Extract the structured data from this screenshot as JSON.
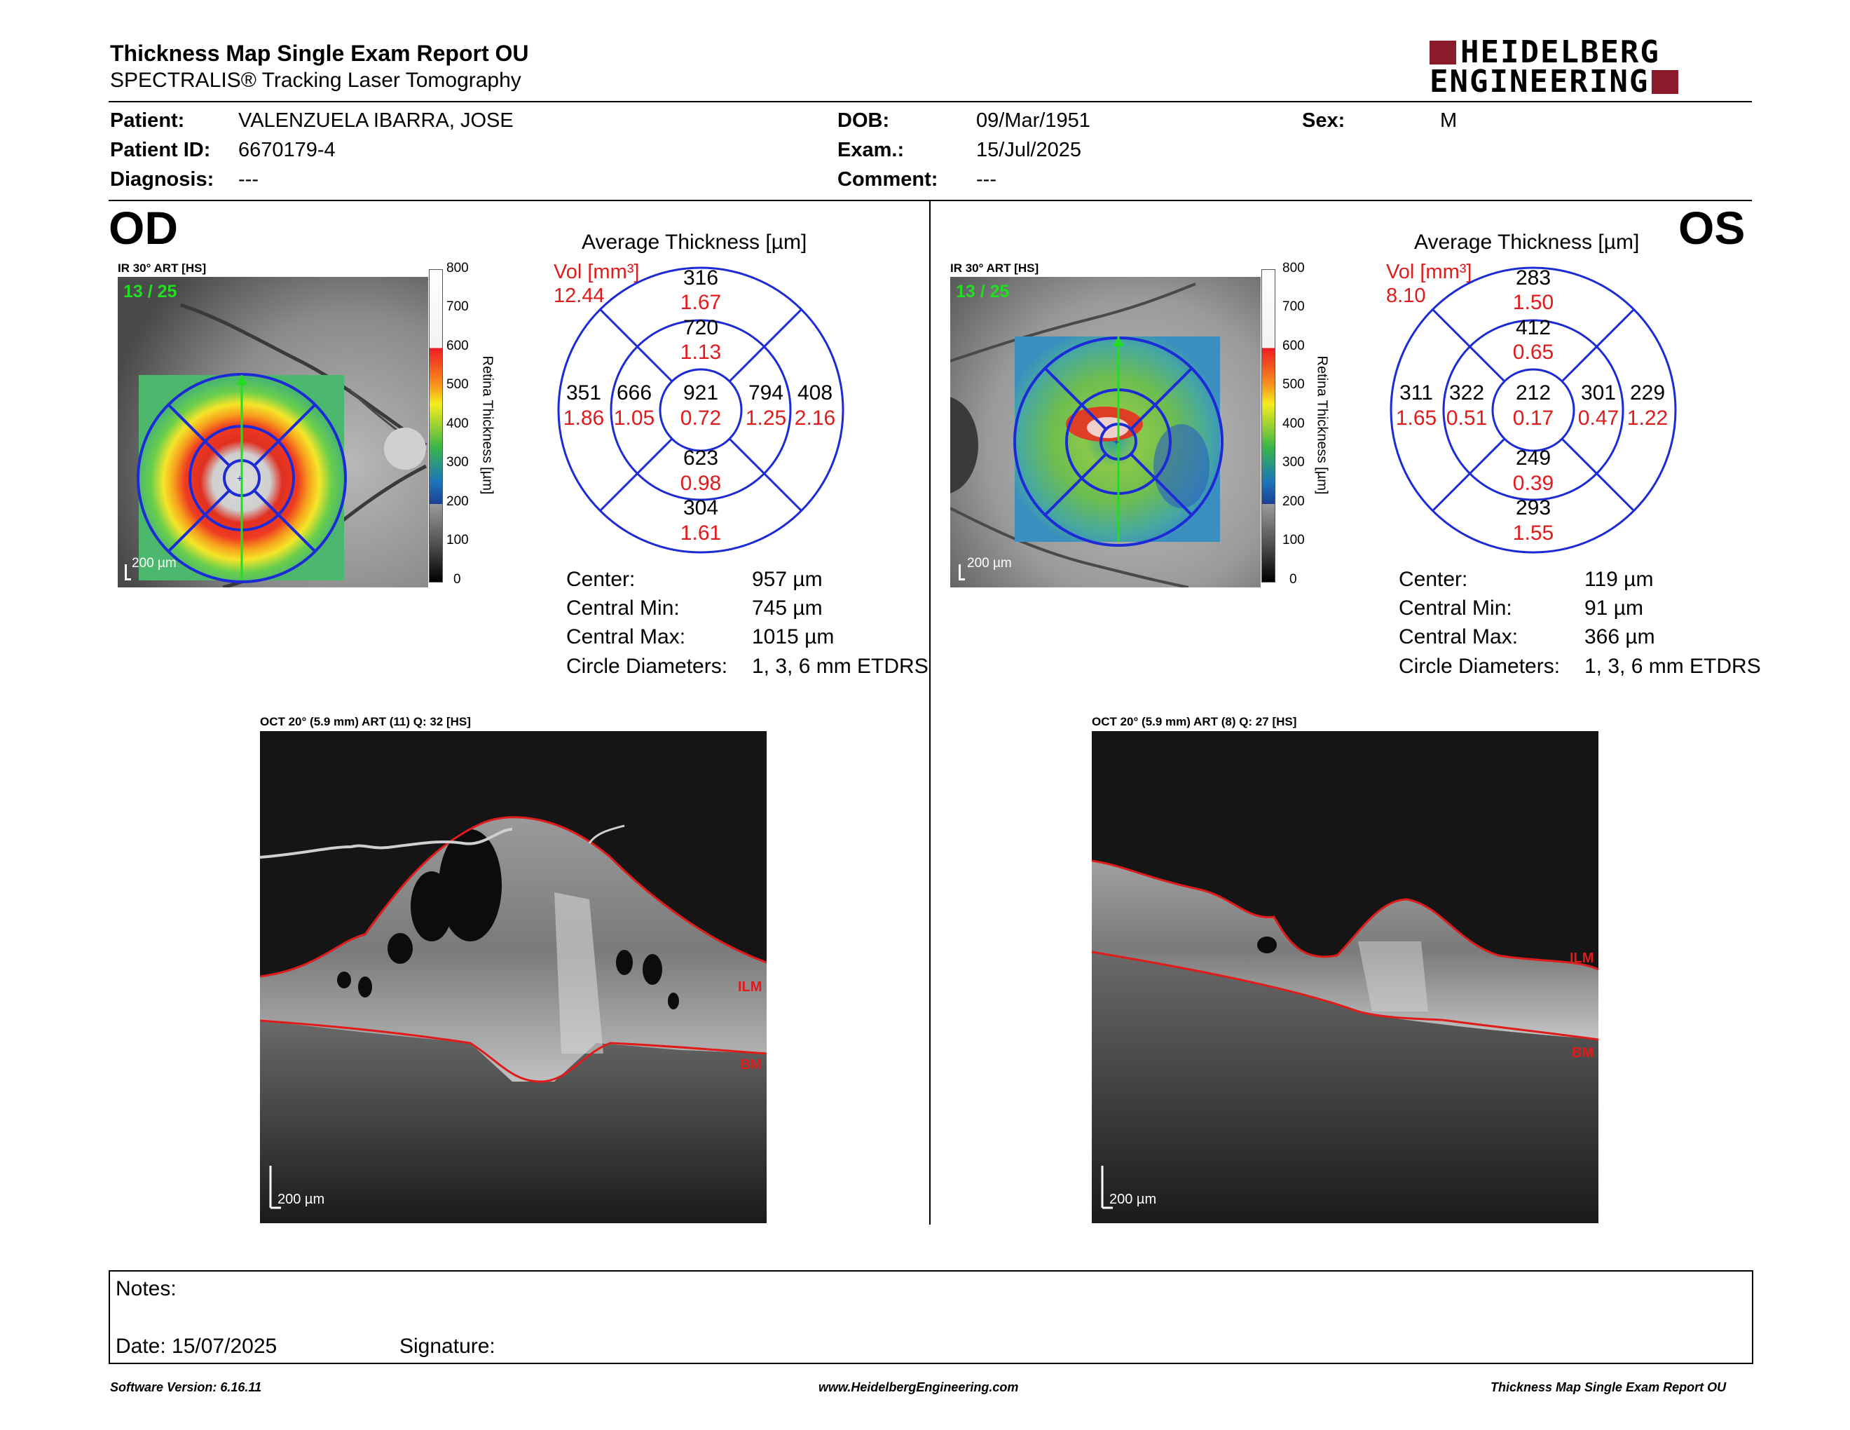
{
  "header": {
    "title": "Thickness Map Single Exam Report OU",
    "subtitle": "SPECTRALIS® Tracking Laser Tomography",
    "logo_line1": "HEIDELBERG",
    "logo_line2": "ENGINEERING",
    "brand_color": "#8b1a2b"
  },
  "patient": {
    "patient_label": "Patient:",
    "patient_value": "VALENZUELA IBARRA, JOSE",
    "id_label": "Patient ID:",
    "id_value": "6670179-4",
    "diag_label": "Diagnosis:",
    "diag_value": "---",
    "dob_label": "DOB:",
    "dob_value": "09/Mar/1951",
    "exam_label": "Exam.:",
    "exam_value": "15/Jul/2025",
    "comment_label": "Comment:",
    "comment_value": "---",
    "sex_label": "Sex:",
    "sex_value": "M"
  },
  "od": {
    "eye": "OD",
    "fundus_title": "IR 30° ART [HS]",
    "frame": "13 / 25",
    "scalebar": "200 µm",
    "avg_title": "Average Thickness [µm]",
    "vol_label": "Vol [mm³]",
    "vol_value": "12.44",
    "grid": {
      "superior_outer": [
        "316",
        "1.67"
      ],
      "superior_inner": [
        "720",
        "1.13"
      ],
      "temporal_outer": [
        "351",
        "1.86"
      ],
      "temporal_inner": [
        "666",
        "1.05"
      ],
      "center": [
        "921",
        "0.72"
      ],
      "nasal_inner": [
        "794",
        "1.25"
      ],
      "nasal_outer": [
        "408",
        "2.16"
      ],
      "inferior_inner": [
        "623",
        "0.98"
      ],
      "inferior_outer": [
        "304",
        "1.61"
      ]
    },
    "stats": {
      "center_label": "Center:",
      "center_value": "957 µm",
      "min_label": "Central Min:",
      "min_value": "745 µm",
      "max_label": "Central Max:",
      "max_value": "1015 µm",
      "diam_label": "Circle Diameters:",
      "diam_value": "1, 3, 6 mm ETDRS"
    },
    "oct_title": "OCT 20° (5.9 mm) ART (11) Q: 32 [HS]",
    "oct_scalebar": "200 µm",
    "ilm": "ILM",
    "bm": "BM"
  },
  "os": {
    "eye": "OS",
    "fundus_title": "IR 30° ART [HS]",
    "frame": "13 / 25",
    "scalebar": "200 µm",
    "avg_title": "Average Thickness [µm]",
    "vol_label": "Vol [mm³]",
    "vol_value": "8.10",
    "grid": {
      "superior_outer": [
        "283",
        "1.50"
      ],
      "superior_inner": [
        "412",
        "0.65"
      ],
      "temporal_outer": [
        "311",
        "1.65"
      ],
      "temporal_inner": [
        "322",
        "0.51"
      ],
      "center": [
        "212",
        "0.17"
      ],
      "nasal_inner": [
        "301",
        "0.47"
      ],
      "nasal_outer": [
        "229",
        "1.22"
      ],
      "inferior_inner": [
        "249",
        "0.39"
      ],
      "inferior_outer": [
        "293",
        "1.55"
      ]
    },
    "stats": {
      "center_label": "Center:",
      "center_value": "119 µm",
      "min_label": "Central Min:",
      "min_value": "91 µm",
      "max_label": "Central Max:",
      "max_value": "366 µm",
      "diam_label": "Circle Diameters:",
      "diam_value": "1, 3, 6 mm ETDRS"
    },
    "oct_title": "OCT 20° (5.9 mm) ART (8) Q: 27 [HS]",
    "oct_scalebar": "200 µm",
    "ilm": "ILM",
    "bm": "BM"
  },
  "colorbar": {
    "ticks": [
      "800",
      "700",
      "600",
      "500",
      "400",
      "300",
      "200",
      "100",
      "0"
    ],
    "label": "Retina Thickness [µm]"
  },
  "notes": {
    "notes_label": "Notes:",
    "date_label": "Date: 15/07/2025",
    "signature_label": "Signature:"
  },
  "footer": {
    "software": "Software Version: 6.16.11",
    "website": "www.HeidelbergEngineering.com",
    "report": "Thickness Map Single Exam Report OU"
  }
}
